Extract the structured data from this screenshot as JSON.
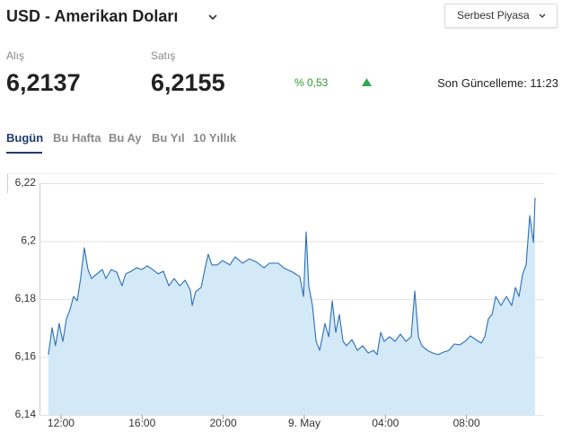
{
  "header": {
    "title": "USD - Amerikan Doları",
    "market": "Serbest Piyasa"
  },
  "quote": {
    "buy_label": "Alış",
    "buy": "6,2137",
    "sell_label": "Satış",
    "sell": "6,2155",
    "change": "% 0,53",
    "updated": "Son Güncelleme: 11:23"
  },
  "tabs": [
    "Bugün",
    "Bu Hafta",
    "Bu Ay",
    "Bu Yıl",
    "10 Yıllık"
  ],
  "chart_data": {
    "type": "area",
    "color": "#2a6fb5",
    "fill": "#d4e9f8",
    "grid": true,
    "xlim": [
      10.94,
      35.78
    ],
    "ylim": [
      6.14,
      6.22
    ],
    "xticks": [
      {
        "value": 12,
        "label": "12:00"
      },
      {
        "value": 16,
        "label": "16:00"
      },
      {
        "value": 20,
        "label": "20:00"
      },
      {
        "value": 24,
        "label": "9. May"
      },
      {
        "value": 28,
        "label": "04:00"
      },
      {
        "value": 32,
        "label": "08:00"
      }
    ],
    "yticks": [
      {
        "value": 6.14,
        "label": "6,14"
      },
      {
        "value": 6.16,
        "label": "6,16"
      },
      {
        "value": 6.18,
        "label": "6,18"
      },
      {
        "value": 6.2,
        "label": "6,2"
      },
      {
        "value": 6.22,
        "label": "6,22"
      }
    ],
    "x": [
      11.38,
      11.56,
      11.73,
      11.91,
      12.09,
      12.27,
      12.44,
      12.62,
      12.8,
      12.97,
      13.15,
      13.33,
      13.51,
      13.77,
      14.04,
      14.21,
      14.48,
      14.75,
      15.01,
      15.19,
      15.46,
      15.72,
      15.99,
      16.26,
      16.52,
      16.79,
      17.05,
      17.32,
      17.58,
      17.85,
      18.12,
      18.38,
      18.47,
      18.64,
      18.91,
      19.09,
      19.26,
      19.44,
      19.71,
      19.97,
      20.33,
      20.59,
      20.95,
      21.3,
      21.66,
      22.01,
      22.28,
      22.72,
      22.98,
      23.43,
      23.78,
      23.96,
      24.09,
      24.22,
      24.4,
      24.58,
      24.76,
      25.02,
      25.2,
      25.38,
      25.55,
      25.73,
      25.91,
      26.08,
      26.35,
      26.62,
      26.88,
      27.15,
      27.41,
      27.59,
      27.77,
      27.94,
      28.21,
      28.48,
      28.74,
      29.01,
      29.27,
      29.45,
      29.63,
      29.8,
      30.07,
      30.33,
      30.6,
      30.87,
      31.13,
      31.4,
      31.66,
      31.93,
      32.19,
      32.46,
      32.73,
      32.9,
      33.08,
      33.26,
      33.44,
      33.7,
      33.97,
      34.23,
      34.41,
      34.59,
      34.77,
      34.94,
      35.12,
      35.3,
      35.38
    ],
    "values": [
      6.1608,
      6.1701,
      6.1639,
      6.1716,
      6.1654,
      6.1732,
      6.1763,
      6.1809,
      6.1794,
      6.1871,
      6.1977,
      6.1902,
      6.1871,
      6.1887,
      6.1902,
      6.1871,
      6.1902,
      6.1893,
      6.1846,
      6.1887,
      6.1896,
      6.1908,
      6.1902,
      6.1915,
      6.1902,
      6.1887,
      6.1896,
      6.1846,
      6.1871,
      6.1846,
      6.1865,
      6.1831,
      6.1778,
      6.1825,
      6.184,
      6.1902,
      6.1955,
      6.1918,
      6.1918,
      6.1933,
      6.1918,
      6.1946,
      6.1924,
      6.1939,
      6.1927,
      6.1908,
      6.1924,
      6.1924,
      6.1908,
      6.1893,
      6.1877,
      6.1809,
      6.2032,
      6.1846,
      6.1778,
      6.1654,
      6.1623,
      6.1716,
      6.167,
      6.1794,
      6.1685,
      6.1747,
      6.1654,
      6.1639,
      6.166,
      6.1623,
      6.1639,
      6.1614,
      6.1623,
      6.1608,
      6.1685,
      6.1654,
      6.167,
      6.1654,
      6.1679,
      6.1654,
      6.167,
      6.1828,
      6.167,
      6.1639,
      6.1623,
      6.1614,
      6.1608,
      6.1617,
      6.1623,
      6.1645,
      6.1642,
      6.1654,
      6.1673,
      6.166,
      6.1648,
      6.167,
      6.1732,
      6.1747,
      6.1809,
      6.1778,
      6.1809,
      6.1778,
      6.184,
      6.1809,
      6.1887,
      6.1918,
      6.2088,
      6.1995,
      6.215
    ]
  }
}
